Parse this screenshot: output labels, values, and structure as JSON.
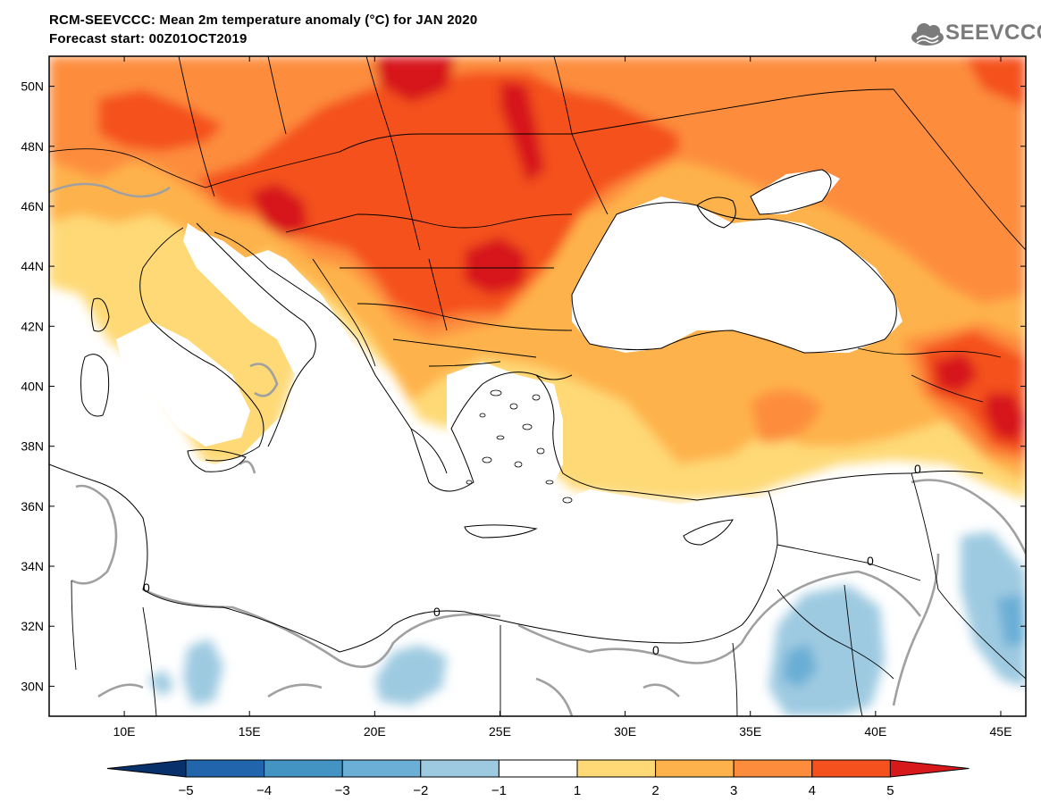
{
  "title": {
    "line1": "RCM-SEEVCCC: Mean 2m temperature anomaly (°C) for JAN 2020",
    "line2": "Forecast start: 00Z01OCT2019"
  },
  "logo": {
    "icon": "cloud-icon",
    "text": "SEEVCCC"
  },
  "map": {
    "lon_range": [
      7,
      46
    ],
    "lat_range": [
      29,
      51
    ],
    "lon_ticks": [
      {
        "value": 10,
        "label": "10E"
      },
      {
        "value": 15,
        "label": "15E"
      },
      {
        "value": 20,
        "label": "20E"
      },
      {
        "value": 25,
        "label": "25E"
      },
      {
        "value": 30,
        "label": "30E"
      },
      {
        "value": 35,
        "label": "35E"
      },
      {
        "value": 40,
        "label": "40E"
      },
      {
        "value": 45,
        "label": "45E"
      }
    ],
    "lat_ticks": [
      {
        "value": 30,
        "label": "30N"
      },
      {
        "value": 32,
        "label": "32N"
      },
      {
        "value": 34,
        "label": "34N"
      },
      {
        "value": 36,
        "label": "36N"
      },
      {
        "value": 38,
        "label": "38N"
      },
      {
        "value": 40,
        "label": "40N"
      },
      {
        "value": 42,
        "label": "42N"
      },
      {
        "value": 44,
        "label": "44N"
      },
      {
        "value": 46,
        "label": "46N"
      },
      {
        "value": 48,
        "label": "48N"
      },
      {
        "value": 50,
        "label": "50N"
      }
    ],
    "contour_label": "0"
  },
  "colorbar": {
    "levels": [
      {
        "value": -5,
        "label": "−5"
      },
      {
        "value": -4,
        "label": "−4"
      },
      {
        "value": -3,
        "label": "−3"
      },
      {
        "value": -2,
        "label": "−2"
      },
      {
        "value": -1,
        "label": "−1"
      },
      {
        "value": 1,
        "label": "1"
      },
      {
        "value": 2,
        "label": "2"
      },
      {
        "value": 3,
        "label": "3"
      },
      {
        "value": 4,
        "label": "4"
      },
      {
        "value": 5,
        "label": "5"
      }
    ],
    "colors": [
      "#08306b",
      "#2166ac",
      "#4393c3",
      "#6baed6",
      "#9ecae1",
      "#ffffff",
      "#fed976",
      "#feb24c",
      "#fd8d3c",
      "#f4511e",
      "#d7191c"
    ]
  }
}
